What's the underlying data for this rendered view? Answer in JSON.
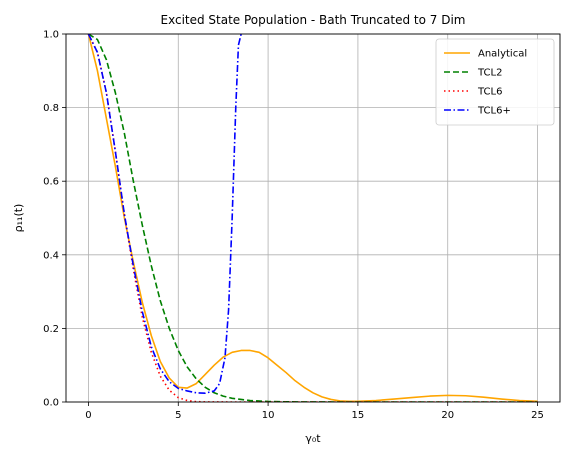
{
  "chart_data": {
    "type": "line",
    "title": "Excited State Population - Bath Truncated to 7 Dim",
    "xlabel": "γ₀t",
    "ylabel": "ρ₁₁(t)",
    "xlim": [
      -1.25,
      26.25
    ],
    "ylim": [
      0,
      1.0
    ],
    "xticks": [
      0,
      5,
      10,
      15,
      20,
      25
    ],
    "yticks": [
      0.0,
      0.2,
      0.4,
      0.6,
      0.8,
      1.0
    ],
    "xtick_labels": [
      "0",
      "5",
      "10",
      "15",
      "20",
      "25"
    ],
    "ytick_labels": [
      "0.0",
      "0.2",
      "0.4",
      "0.6",
      "0.8",
      "1.0"
    ],
    "grid": true,
    "legend_position": "top-right",
    "series": [
      {
        "name": "Analytical",
        "color": "#ffa500",
        "style": "solid",
        "x": [
          0,
          0.5,
          1,
          1.5,
          2,
          2.5,
          3,
          3.5,
          4,
          4.5,
          5,
          5.5,
          6,
          6.5,
          7,
          7.5,
          8,
          8.5,
          9,
          9.5,
          10,
          10.5,
          11,
          11.5,
          12,
          12.5,
          13,
          13.5,
          14,
          14.5,
          15,
          16,
          17,
          18,
          19,
          20,
          21,
          22,
          23,
          24,
          25
        ],
        "y": [
          1.0,
          0.9,
          0.77,
          0.64,
          0.5,
          0.38,
          0.27,
          0.18,
          0.11,
          0.065,
          0.04,
          0.038,
          0.05,
          0.075,
          0.1,
          0.122,
          0.135,
          0.14,
          0.14,
          0.135,
          0.12,
          0.1,
          0.08,
          0.058,
          0.04,
          0.025,
          0.014,
          0.007,
          0.003,
          0.002,
          0.002,
          0.004,
          0.008,
          0.012,
          0.016,
          0.018,
          0.017,
          0.013,
          0.008,
          0.004,
          0.002
        ]
      },
      {
        "name": "TCL2",
        "color": "#008000",
        "style": "dashed",
        "x": [
          0,
          0.5,
          1,
          1.5,
          2,
          2.5,
          3,
          3.5,
          4,
          4.5,
          5,
          5.5,
          6,
          6.5,
          7,
          7.5,
          8,
          9,
          10,
          11,
          12,
          14,
          16,
          18,
          20,
          22,
          25
        ],
        "y": [
          1.0,
          0.985,
          0.93,
          0.84,
          0.73,
          0.6,
          0.48,
          0.37,
          0.275,
          0.2,
          0.14,
          0.095,
          0.063,
          0.04,
          0.025,
          0.016,
          0.01,
          0.004,
          0.0015,
          0.0005,
          0.0002,
          0,
          0,
          0,
          0,
          0,
          0
        ]
      },
      {
        "name": "TCL6",
        "color": "#ff0000",
        "style": "dotted",
        "x": [
          0,
          0.5,
          1,
          1.5,
          2,
          2.5,
          3,
          3.5,
          4,
          4.5,
          5,
          5.5,
          6,
          6.5,
          7,
          8,
          10,
          12,
          15,
          20,
          25
        ],
        "y": [
          1.0,
          0.95,
          0.84,
          0.68,
          0.51,
          0.36,
          0.23,
          0.135,
          0.07,
          0.032,
          0.012,
          0.004,
          0.001,
          0.0003,
          0.0001,
          0,
          0,
          0,
          0,
          0,
          0
        ]
      },
      {
        "name": "TCL6+",
        "color": "#0000ff",
        "style": "dashdot",
        "x": [
          0,
          0.5,
          1,
          1.5,
          2,
          2.5,
          3,
          3.5,
          4,
          4.5,
          5,
          5.5,
          6,
          6.5,
          7,
          7.3,
          7.6,
          7.8,
          8.0,
          8.2,
          8.35,
          8.5
        ],
        "y": [
          1.0,
          0.95,
          0.84,
          0.68,
          0.51,
          0.37,
          0.245,
          0.15,
          0.09,
          0.055,
          0.037,
          0.03,
          0.025,
          0.024,
          0.03,
          0.05,
          0.12,
          0.25,
          0.5,
          0.8,
          0.97,
          1.0
        ]
      }
    ]
  }
}
